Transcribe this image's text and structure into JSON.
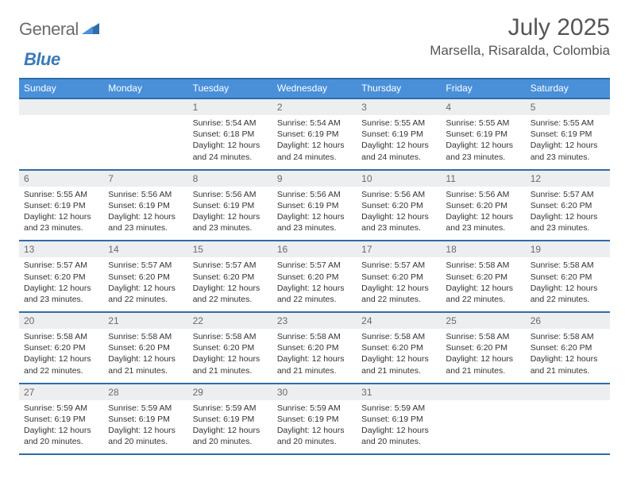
{
  "brand": {
    "word1": "General",
    "word2": "Blue"
  },
  "title": "July 2025",
  "location": "Marsella, Risaralda, Colombia",
  "colors": {
    "header_bg": "#4a90d9",
    "header_text": "#ffffff",
    "rule": "#2f6ca8",
    "daynum_bg": "#eceef0",
    "body_text": "#333333",
    "logo_gray": "#6c6c6c",
    "logo_blue": "#3a7ab8"
  },
  "dayNames": [
    "Sunday",
    "Monday",
    "Tuesday",
    "Wednesday",
    "Thursday",
    "Friday",
    "Saturday"
  ],
  "weeks": [
    {
      "nums": [
        "",
        "",
        "1",
        "2",
        "3",
        "4",
        "5"
      ],
      "cells": [
        {
          "sunrise": "",
          "sunset": "",
          "daylight1": "",
          "daylight2": ""
        },
        {
          "sunrise": "",
          "sunset": "",
          "daylight1": "",
          "daylight2": ""
        },
        {
          "sunrise": "Sunrise: 5:54 AM",
          "sunset": "Sunset: 6:18 PM",
          "daylight1": "Daylight: 12 hours",
          "daylight2": "and 24 minutes."
        },
        {
          "sunrise": "Sunrise: 5:54 AM",
          "sunset": "Sunset: 6:19 PM",
          "daylight1": "Daylight: 12 hours",
          "daylight2": "and 24 minutes."
        },
        {
          "sunrise": "Sunrise: 5:55 AM",
          "sunset": "Sunset: 6:19 PM",
          "daylight1": "Daylight: 12 hours",
          "daylight2": "and 24 minutes."
        },
        {
          "sunrise": "Sunrise: 5:55 AM",
          "sunset": "Sunset: 6:19 PM",
          "daylight1": "Daylight: 12 hours",
          "daylight2": "and 23 minutes."
        },
        {
          "sunrise": "Sunrise: 5:55 AM",
          "sunset": "Sunset: 6:19 PM",
          "daylight1": "Daylight: 12 hours",
          "daylight2": "and 23 minutes."
        }
      ]
    },
    {
      "nums": [
        "6",
        "7",
        "8",
        "9",
        "10",
        "11",
        "12"
      ],
      "cells": [
        {
          "sunrise": "Sunrise: 5:55 AM",
          "sunset": "Sunset: 6:19 PM",
          "daylight1": "Daylight: 12 hours",
          "daylight2": "and 23 minutes."
        },
        {
          "sunrise": "Sunrise: 5:56 AM",
          "sunset": "Sunset: 6:19 PM",
          "daylight1": "Daylight: 12 hours",
          "daylight2": "and 23 minutes."
        },
        {
          "sunrise": "Sunrise: 5:56 AM",
          "sunset": "Sunset: 6:19 PM",
          "daylight1": "Daylight: 12 hours",
          "daylight2": "and 23 minutes."
        },
        {
          "sunrise": "Sunrise: 5:56 AM",
          "sunset": "Sunset: 6:19 PM",
          "daylight1": "Daylight: 12 hours",
          "daylight2": "and 23 minutes."
        },
        {
          "sunrise": "Sunrise: 5:56 AM",
          "sunset": "Sunset: 6:20 PM",
          "daylight1": "Daylight: 12 hours",
          "daylight2": "and 23 minutes."
        },
        {
          "sunrise": "Sunrise: 5:56 AM",
          "sunset": "Sunset: 6:20 PM",
          "daylight1": "Daylight: 12 hours",
          "daylight2": "and 23 minutes."
        },
        {
          "sunrise": "Sunrise: 5:57 AM",
          "sunset": "Sunset: 6:20 PM",
          "daylight1": "Daylight: 12 hours",
          "daylight2": "and 23 minutes."
        }
      ]
    },
    {
      "nums": [
        "13",
        "14",
        "15",
        "16",
        "17",
        "18",
        "19"
      ],
      "cells": [
        {
          "sunrise": "Sunrise: 5:57 AM",
          "sunset": "Sunset: 6:20 PM",
          "daylight1": "Daylight: 12 hours",
          "daylight2": "and 23 minutes."
        },
        {
          "sunrise": "Sunrise: 5:57 AM",
          "sunset": "Sunset: 6:20 PM",
          "daylight1": "Daylight: 12 hours",
          "daylight2": "and 22 minutes."
        },
        {
          "sunrise": "Sunrise: 5:57 AM",
          "sunset": "Sunset: 6:20 PM",
          "daylight1": "Daylight: 12 hours",
          "daylight2": "and 22 minutes."
        },
        {
          "sunrise": "Sunrise: 5:57 AM",
          "sunset": "Sunset: 6:20 PM",
          "daylight1": "Daylight: 12 hours",
          "daylight2": "and 22 minutes."
        },
        {
          "sunrise": "Sunrise: 5:57 AM",
          "sunset": "Sunset: 6:20 PM",
          "daylight1": "Daylight: 12 hours",
          "daylight2": "and 22 minutes."
        },
        {
          "sunrise": "Sunrise: 5:58 AM",
          "sunset": "Sunset: 6:20 PM",
          "daylight1": "Daylight: 12 hours",
          "daylight2": "and 22 minutes."
        },
        {
          "sunrise": "Sunrise: 5:58 AM",
          "sunset": "Sunset: 6:20 PM",
          "daylight1": "Daylight: 12 hours",
          "daylight2": "and 22 minutes."
        }
      ]
    },
    {
      "nums": [
        "20",
        "21",
        "22",
        "23",
        "24",
        "25",
        "26"
      ],
      "cells": [
        {
          "sunrise": "Sunrise: 5:58 AM",
          "sunset": "Sunset: 6:20 PM",
          "daylight1": "Daylight: 12 hours",
          "daylight2": "and 22 minutes."
        },
        {
          "sunrise": "Sunrise: 5:58 AM",
          "sunset": "Sunset: 6:20 PM",
          "daylight1": "Daylight: 12 hours",
          "daylight2": "and 21 minutes."
        },
        {
          "sunrise": "Sunrise: 5:58 AM",
          "sunset": "Sunset: 6:20 PM",
          "daylight1": "Daylight: 12 hours",
          "daylight2": "and 21 minutes."
        },
        {
          "sunrise": "Sunrise: 5:58 AM",
          "sunset": "Sunset: 6:20 PM",
          "daylight1": "Daylight: 12 hours",
          "daylight2": "and 21 minutes."
        },
        {
          "sunrise": "Sunrise: 5:58 AM",
          "sunset": "Sunset: 6:20 PM",
          "daylight1": "Daylight: 12 hours",
          "daylight2": "and 21 minutes."
        },
        {
          "sunrise": "Sunrise: 5:58 AM",
          "sunset": "Sunset: 6:20 PM",
          "daylight1": "Daylight: 12 hours",
          "daylight2": "and 21 minutes."
        },
        {
          "sunrise": "Sunrise: 5:58 AM",
          "sunset": "Sunset: 6:20 PM",
          "daylight1": "Daylight: 12 hours",
          "daylight2": "and 21 minutes."
        }
      ]
    },
    {
      "nums": [
        "27",
        "28",
        "29",
        "30",
        "31",
        "",
        ""
      ],
      "cells": [
        {
          "sunrise": "Sunrise: 5:59 AM",
          "sunset": "Sunset: 6:19 PM",
          "daylight1": "Daylight: 12 hours",
          "daylight2": "and 20 minutes."
        },
        {
          "sunrise": "Sunrise: 5:59 AM",
          "sunset": "Sunset: 6:19 PM",
          "daylight1": "Daylight: 12 hours",
          "daylight2": "and 20 minutes."
        },
        {
          "sunrise": "Sunrise: 5:59 AM",
          "sunset": "Sunset: 6:19 PM",
          "daylight1": "Daylight: 12 hours",
          "daylight2": "and 20 minutes."
        },
        {
          "sunrise": "Sunrise: 5:59 AM",
          "sunset": "Sunset: 6:19 PM",
          "daylight1": "Daylight: 12 hours",
          "daylight2": "and 20 minutes."
        },
        {
          "sunrise": "Sunrise: 5:59 AM",
          "sunset": "Sunset: 6:19 PM",
          "daylight1": "Daylight: 12 hours",
          "daylight2": "and 20 minutes."
        },
        {
          "sunrise": "",
          "sunset": "",
          "daylight1": "",
          "daylight2": ""
        },
        {
          "sunrise": "",
          "sunset": "",
          "daylight1": "",
          "daylight2": ""
        }
      ]
    }
  ]
}
